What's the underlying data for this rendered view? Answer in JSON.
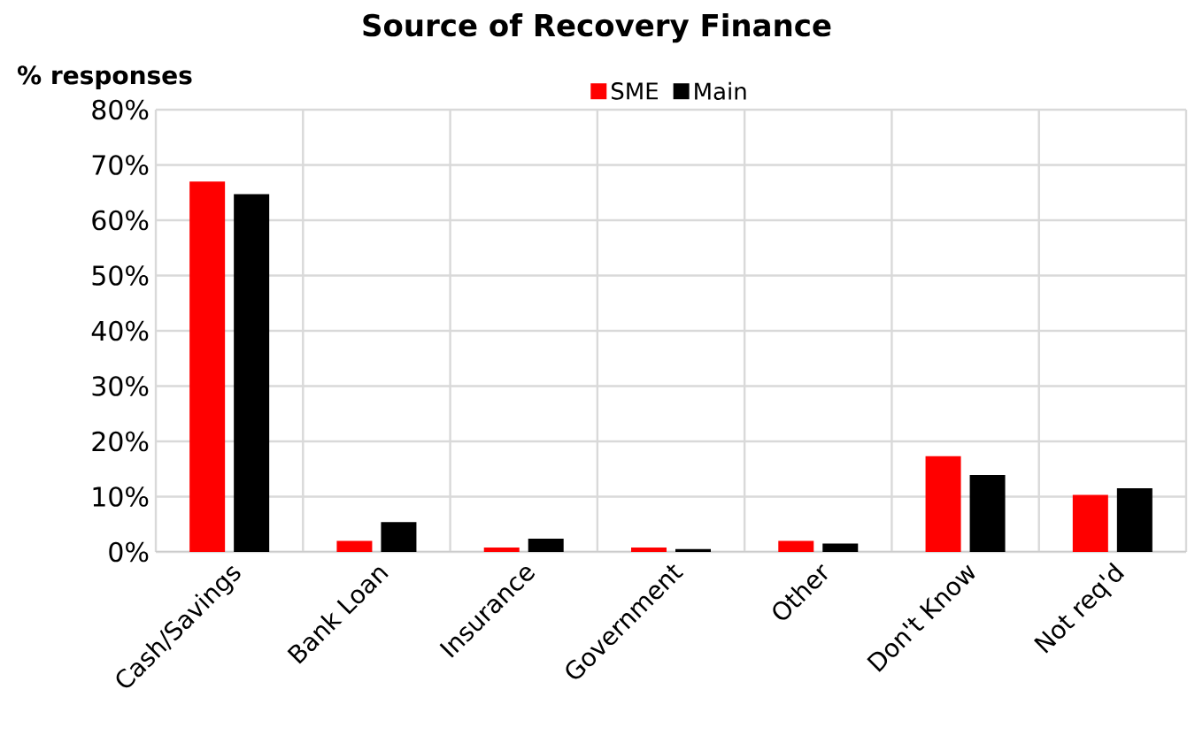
{
  "chart_data": {
    "type": "bar",
    "title": "Source of Recovery Finance",
    "ylabel": "% responses",
    "categories": [
      "Cash/Savings",
      "Bank Loan",
      "Insurance",
      "Government",
      "Other",
      "Don't Know",
      "Not req'd"
    ],
    "series": [
      {
        "name": "SME",
        "color": "#ff0000",
        "values": [
          67,
          2.0,
          0.8,
          0.8,
          2.0,
          17.3,
          10.3
        ]
      },
      {
        "name": "Main",
        "color": "#000000",
        "values": [
          64.7,
          5.4,
          2.4,
          0.5,
          1.5,
          13.9,
          11.5
        ]
      }
    ],
    "ylim": [
      0,
      80
    ],
    "yticks": [
      {
        "value": 0,
        "label": "0%"
      },
      {
        "value": 10,
        "label": "10%"
      },
      {
        "value": 20,
        "label": "20%"
      },
      {
        "value": 30,
        "label": "30%"
      },
      {
        "value": 40,
        "label": "40%"
      },
      {
        "value": 50,
        "label": "50%"
      },
      {
        "value": 60,
        "label": "60%"
      },
      {
        "value": 70,
        "label": "70%"
      },
      {
        "value": 80,
        "label": "80%"
      }
    ],
    "grid": true,
    "legend": "top"
  }
}
